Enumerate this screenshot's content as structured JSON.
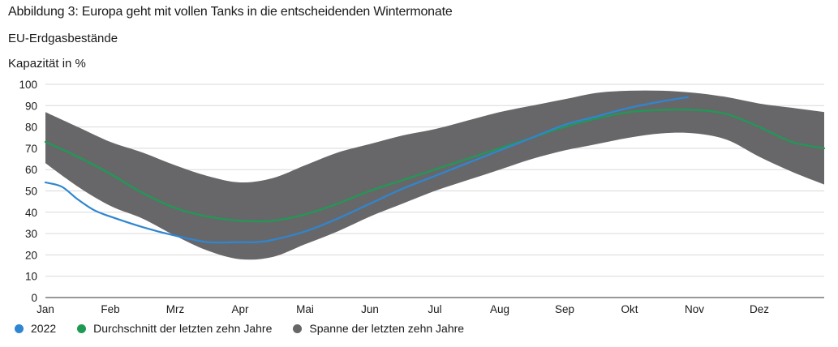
{
  "header": {
    "title": "Abbildung 3: Europa geht mit vollen Tanks in die entscheidenden Wintermonate",
    "subtitle": "EU-Erdgasbestände",
    "unit_label": "Kapazität in %"
  },
  "legend": [
    {
      "label": "2022",
      "color": "#2f86d1"
    },
    {
      "label": "Durchschnitt der letzten zehn Jahre",
      "color": "#1f9a55"
    },
    {
      "label": "Spanne der letzten zehn Jahre",
      "color": "#67676a"
    }
  ],
  "chart_data": {
    "type": "area",
    "title": "Abbildung 3: Europa geht mit vollen Tanks in die entscheidenden Wintermonate",
    "subtitle": "EU-Erdgasbestände",
    "ylabel": "Kapazität in %",
    "xlabel": "",
    "ylim": [
      0,
      100
    ],
    "yticks": [
      0,
      10,
      20,
      30,
      40,
      50,
      60,
      70,
      80,
      90,
      100
    ],
    "months": [
      "Jan",
      "Feb",
      "Mrz",
      "Apr",
      "Mai",
      "Jun",
      "Jul",
      "Aug",
      "Sep",
      "Okt",
      "Nov",
      "Dez"
    ],
    "grid": true,
    "range_10y": {
      "name": "Spanne der letzten zehn Jahre",
      "x": [
        0,
        0.5,
        1,
        1.5,
        2,
        2.5,
        3,
        3.5,
        4,
        4.5,
        5,
        5.5,
        6,
        6.5,
        7,
        7.5,
        8,
        8.5,
        9,
        9.5,
        10,
        10.5,
        11,
        11.5,
        12
      ],
      "low": [
        63,
        52,
        43,
        37,
        29,
        22,
        18,
        19,
        25,
        31,
        38,
        44,
        50,
        55,
        60,
        65,
        69,
        72,
        75,
        77,
        77,
        74,
        66,
        59,
        53
      ],
      "high": [
        87,
        80,
        73,
        68,
        62,
        57,
        54,
        56,
        62,
        68,
        72,
        76,
        79,
        83,
        87,
        90,
        93,
        96,
        97,
        97,
        96,
        94,
        91,
        89,
        87
      ]
    },
    "series": [
      {
        "name": "2022",
        "x": [
          0,
          0.25,
          0.5,
          0.75,
          1,
          1.5,
          2,
          2.5,
          3,
          3.25,
          3.5,
          4,
          4.5,
          5,
          5.5,
          6,
          6.5,
          7,
          7.5,
          8,
          8.5,
          9,
          9.5,
          9.9
        ],
        "values": [
          54,
          52,
          46,
          41,
          38,
          33,
          29,
          26,
          26,
          26,
          27,
          31,
          37,
          44,
          51,
          57,
          63,
          69,
          75,
          81,
          85,
          89,
          92,
          94
        ]
      },
      {
        "name": "Durchschnitt der letzten zehn Jahre",
        "x": [
          0,
          0.5,
          1,
          1.5,
          2,
          2.5,
          3,
          3.5,
          4,
          4.5,
          5,
          5.5,
          6,
          6.5,
          7,
          7.5,
          8,
          8.5,
          9,
          9.5,
          10,
          10.5,
          11,
          11.5,
          12
        ],
        "values": [
          73,
          66,
          58,
          49,
          42,
          38,
          36,
          36,
          39,
          44,
          50,
          55,
          60,
          65,
          70,
          75,
          80,
          84,
          87,
          88,
          88,
          86,
          80,
          73,
          70
        ]
      }
    ]
  }
}
